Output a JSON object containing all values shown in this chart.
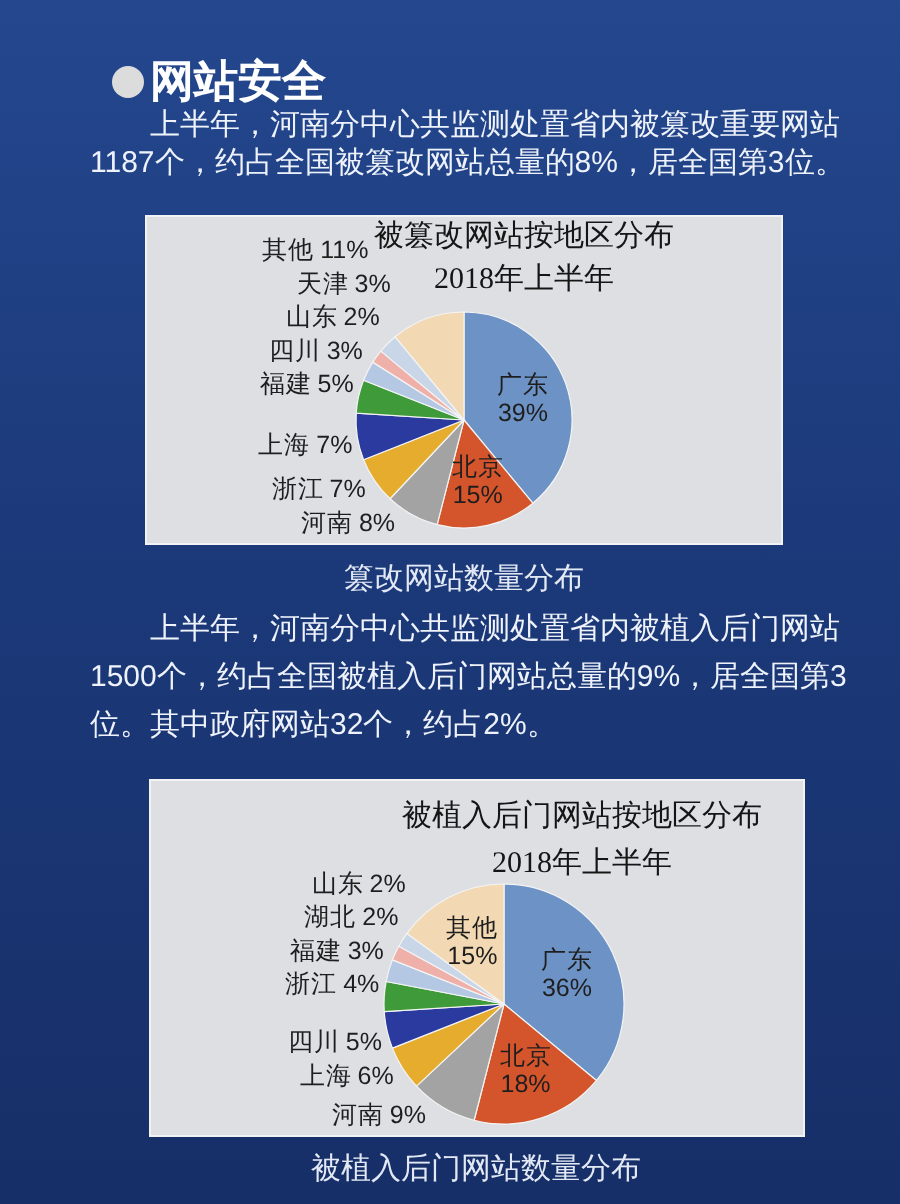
{
  "chart_data": [
    {
      "type": "pie",
      "title": "被篡改网站按地区分布",
      "subtitle": "2018年上半年",
      "categories": [
        "广东",
        "北京",
        "河南",
        "浙江",
        "上海",
        "福建",
        "四川",
        "山东",
        "天津",
        "其他"
      ],
      "values": [
        39,
        15,
        8,
        7,
        7,
        5,
        3,
        2,
        3,
        11
      ],
      "value_labels": [
        "39%",
        "15%",
        "8%",
        "7%",
        "7%",
        "5%",
        "3%",
        "2%",
        "3%",
        "11%"
      ],
      "colors": [
        "#6d93c6",
        "#d4552b",
        "#a3a3a3",
        "#e6ac2e",
        "#2a3a9e",
        "#3f9b3a",
        "#b4c8e4",
        "#eeb0a8",
        "#c9d6e8",
        "#f2d9b3"
      ],
      "annotations": [
        "网站安全",
        "上半年，河南分中心共监测处置省内被篡改重要网站1187个，约占全国被篡改网站总量的8%，居全国第3位。",
        "篡改网站数量分布"
      ]
    },
    {
      "type": "pie",
      "title": "被植入后门网站按地区分布",
      "subtitle": "2018年上半年",
      "categories": [
        "广东",
        "北京",
        "河南",
        "上海",
        "四川",
        "浙江",
        "福建",
        "湖北",
        "山东",
        "其他"
      ],
      "values": [
        36,
        18,
        9,
        6,
        5,
        4,
        3,
        2,
        2,
        15
      ],
      "value_labels": [
        "36%",
        "18%",
        "9%",
        "6%",
        "5%",
        "4%",
        "3%",
        "2%",
        "2%",
        "15%"
      ],
      "colors": [
        "#6d93c6",
        "#d4552b",
        "#a3a3a3",
        "#e6ac2e",
        "#2a3a9e",
        "#3f9b3a",
        "#b4c8e4",
        "#eeb0a8",
        "#c9d6e8",
        "#f2d9b3"
      ],
      "annotations": [
        "上半年，河南分中心共监测处置省内被植入后门网站1500个，约占全国被植入后门网站总量的9%，居全国第3位。其中政府网站32个，约占2%。",
        "被植入后门网站数量分布"
      ]
    }
  ]
}
